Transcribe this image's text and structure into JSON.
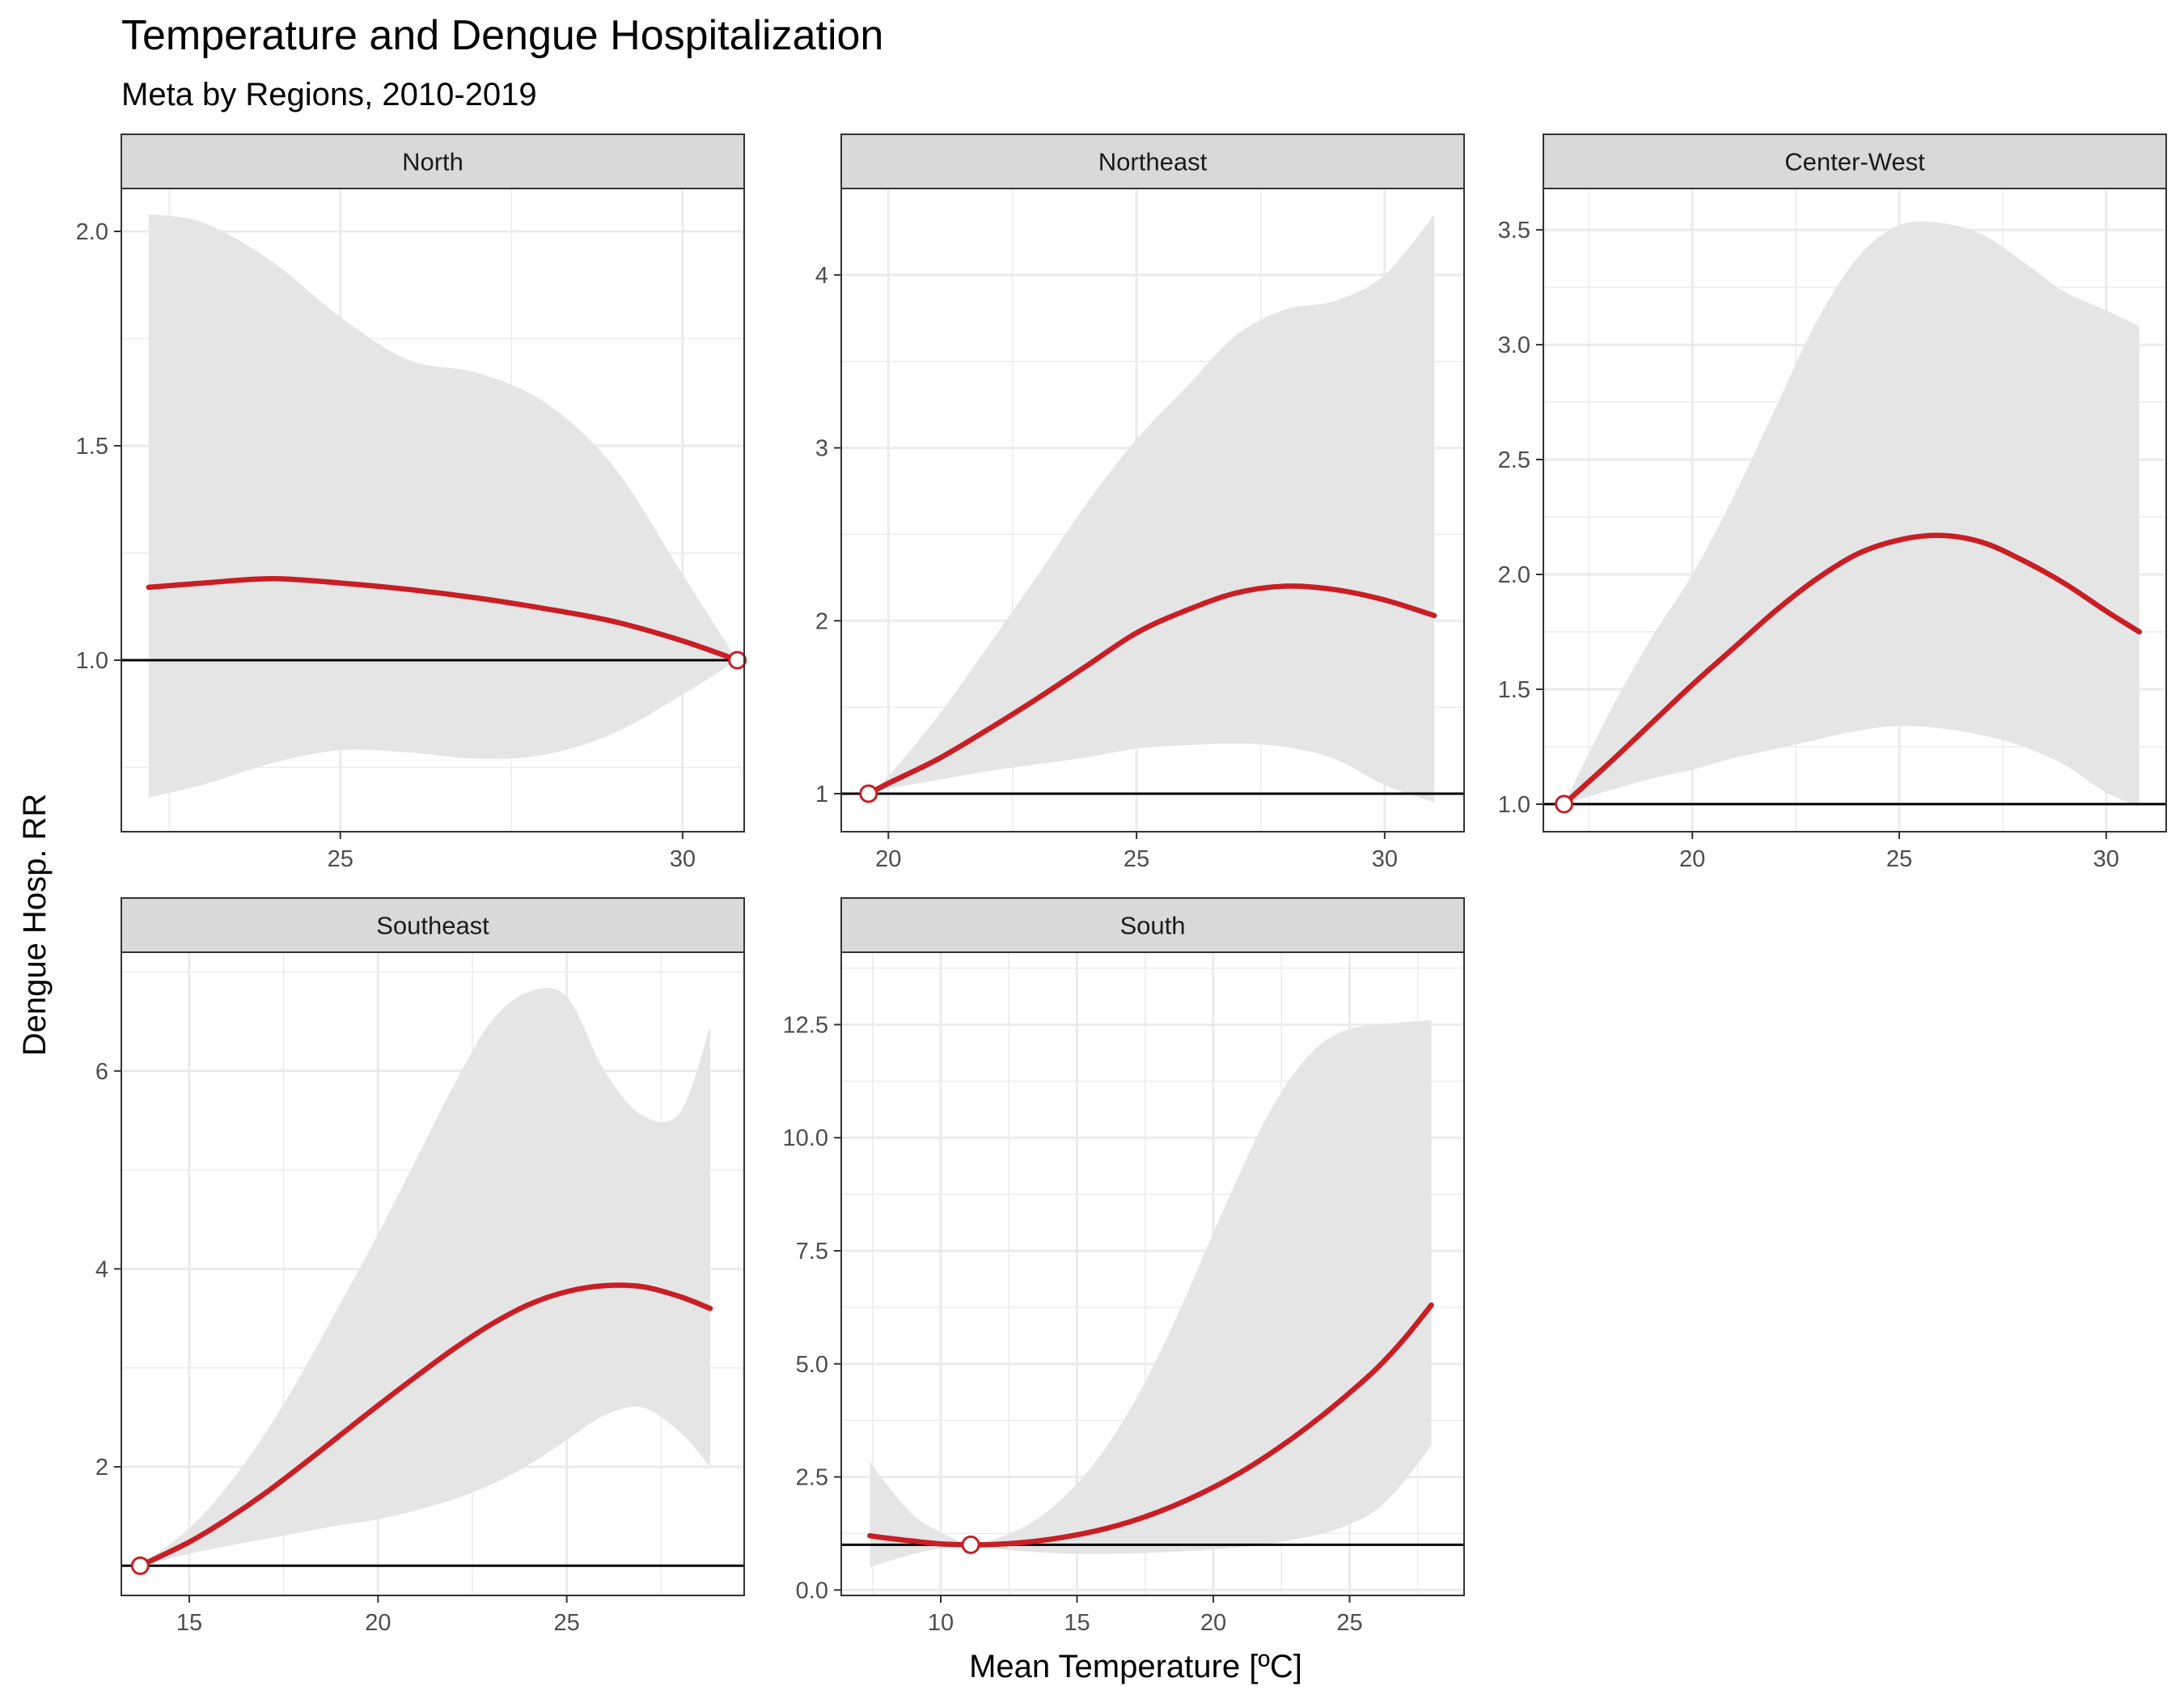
{
  "title": "Temperature and Dengue Hospitalization",
  "subtitle": "Meta by Regions, 2010-2019",
  "colors": {
    "line": "#c81e24",
    "ribbon": "#e5e5e5",
    "grid": "#ebebeb",
    "strip": "#d9d9d9",
    "border": "#333333",
    "reference": "#000000"
  },
  "chart_data": [
    {
      "type": "line",
      "facet": "North",
      "xlabel": "Mean Temperature [ºC]",
      "ylabel": "Dengue Hosp. RR",
      "xlim": [
        21.8,
        30.9
      ],
      "ylim": [
        0.6,
        2.1
      ],
      "xticks": [
        25,
        30
      ],
      "yticks": [
        1.0,
        1.5,
        2.0
      ],
      "ytick_labels": [
        "1.0",
        "1.5",
        "2.0"
      ],
      "reference_y": 1.0,
      "reference_temp": 30.8,
      "x": [
        22.2,
        23,
        24,
        25,
        26,
        27,
        28,
        29,
        30,
        30.8
      ],
      "rr": [
        1.17,
        1.18,
        1.19,
        1.18,
        1.165,
        1.145,
        1.12,
        1.09,
        1.045,
        1.0
      ],
      "lower": [
        0.68,
        0.71,
        0.76,
        0.79,
        0.785,
        0.77,
        0.78,
        0.83,
        0.92,
        1.0
      ],
      "upper": [
        2.04,
        2.02,
        1.93,
        1.8,
        1.7,
        1.67,
        1.6,
        1.45,
        1.2,
        1.0
      ]
    },
    {
      "type": "line",
      "facet": "Northeast",
      "xlabel": "Mean Temperature [ºC]",
      "ylabel": "Dengue Hosp. RR",
      "xlim": [
        19.05,
        31.6
      ],
      "ylim": [
        0.78,
        4.5
      ],
      "xticks": [
        20,
        25,
        30
      ],
      "yticks": [
        1,
        2,
        3,
        4
      ],
      "ytick_labels": [
        "1",
        "2",
        "3",
        "4"
      ],
      "reference_y": 1.0,
      "reference_temp": 19.6,
      "x": [
        19.6,
        20,
        21,
        22,
        23,
        24,
        25,
        26,
        27,
        28,
        29,
        30,
        31
      ],
      "rr": [
        1.0,
        1.06,
        1.2,
        1.37,
        1.55,
        1.74,
        1.93,
        2.06,
        2.16,
        2.2,
        2.18,
        2.12,
        2.03
      ],
      "lower": [
        1.0,
        1.03,
        1.08,
        1.13,
        1.17,
        1.21,
        1.26,
        1.28,
        1.29,
        1.27,
        1.2,
        1.05,
        0.95
      ],
      "upper": [
        1.0,
        1.1,
        1.45,
        1.85,
        2.26,
        2.68,
        3.05,
        3.35,
        3.65,
        3.8,
        3.85,
        4.0,
        4.35
      ]
    },
    {
      "type": "line",
      "facet": "Center-West",
      "xlabel": "Mean Temperature [ºC]",
      "ylabel": "Dengue Hosp. RR",
      "xlim": [
        16.4,
        31.45
      ],
      "ylim": [
        0.88,
        3.68
      ],
      "xticks": [
        20,
        25,
        30
      ],
      "yticks": [
        1.0,
        1.5,
        2.0,
        2.5,
        3.0,
        3.5
      ],
      "ytick_labels": [
        "1.0",
        "1.5",
        "2.0",
        "2.5",
        "3.0",
        "3.5"
      ],
      "reference_y": 1.0,
      "reference_temp": 16.9,
      "x": [
        16.9,
        18,
        19,
        20,
        21,
        22,
        23,
        24,
        25,
        26,
        27,
        28,
        29,
        30,
        30.8
      ],
      "rr": [
        1.0,
        1.18,
        1.35,
        1.52,
        1.68,
        1.84,
        1.98,
        2.09,
        2.15,
        2.17,
        2.14,
        2.06,
        1.96,
        1.84,
        1.75
      ],
      "lower": [
        1.0,
        1.06,
        1.11,
        1.15,
        1.2,
        1.24,
        1.28,
        1.32,
        1.34,
        1.33,
        1.3,
        1.25,
        1.17,
        1.05,
        0.99
      ],
      "upper": [
        1.0,
        1.4,
        1.72,
        2.0,
        2.34,
        2.72,
        3.1,
        3.38,
        3.52,
        3.53,
        3.48,
        3.36,
        3.23,
        3.15,
        3.08
      ]
    },
    {
      "type": "line",
      "facet": "Southeast",
      "xlabel": "Mean Temperature [ºC]",
      "ylabel": "Dengue Hosp. RR",
      "xlim": [
        13.2,
        29.7
      ],
      "ylim": [
        0.7,
        7.2
      ],
      "xticks": [
        15,
        20,
        25
      ],
      "yticks": [
        2,
        4,
        6
      ],
      "ytick_labels": [
        "2",
        "4",
        "6"
      ],
      "reference_y": 1.0,
      "reference_temp": 13.7,
      "x": [
        13.7,
        15,
        16,
        17,
        18,
        19,
        20,
        21,
        22,
        23,
        24,
        25,
        26,
        27,
        28,
        28.8
      ],
      "rr": [
        1.0,
        1.24,
        1.47,
        1.73,
        2.02,
        2.32,
        2.62,
        2.91,
        3.19,
        3.44,
        3.64,
        3.77,
        3.83,
        3.82,
        3.72,
        3.6
      ],
      "lower": [
        1.0,
        1.12,
        1.2,
        1.27,
        1.34,
        1.41,
        1.47,
        1.56,
        1.67,
        1.82,
        2.02,
        2.27,
        2.52,
        2.6,
        2.35,
        2.0
      ],
      "upper": [
        1.0,
        1.38,
        1.8,
        2.33,
        2.96,
        3.65,
        4.35,
        5.1,
        5.85,
        6.5,
        6.8,
        6.75,
        6.0,
        5.55,
        5.58,
        6.45
      ]
    },
    {
      "type": "line",
      "facet": "South",
      "xlabel": "Mean Temperature [ºC]",
      "ylabel": "Dengue Hosp. RR",
      "xlim": [
        6.35,
        29.2
      ],
      "ylim": [
        -0.12,
        14.1
      ],
      "xticks": [
        10,
        15,
        20,
        25
      ],
      "yticks": [
        0,
        2.5,
        5,
        7.5,
        10,
        12.5
      ],
      "ytick_labels": [
        "0.0",
        "2.5",
        "5.0",
        "7.5",
        "10.0",
        "12.5"
      ],
      "reference_y": 1.0,
      "reference_temp": 11.1,
      "x": [
        7.4,
        8,
        9,
        10,
        11.1,
        12,
        13,
        14,
        15,
        16,
        17,
        18,
        19,
        20,
        21,
        22,
        23,
        24,
        25,
        26,
        27,
        28
      ],
      "rr": [
        1.2,
        1.15,
        1.08,
        1.02,
        1.0,
        1.01,
        1.05,
        1.12,
        1.22,
        1.35,
        1.52,
        1.73,
        1.98,
        2.27,
        2.6,
        2.98,
        3.4,
        3.86,
        4.36,
        4.9,
        5.55,
        6.3
      ],
      "lower": [
        0.5,
        0.62,
        0.8,
        0.92,
        1.0,
        0.92,
        0.86,
        0.82,
        0.8,
        0.8,
        0.81,
        0.83,
        0.86,
        0.9,
        0.95,
        1.02,
        1.12,
        1.25,
        1.45,
        1.78,
        2.4,
        3.2
      ],
      "upper": [
        2.85,
        2.35,
        1.65,
        1.28,
        1.0,
        1.13,
        1.38,
        1.78,
        2.35,
        3.1,
        4.05,
        5.2,
        6.5,
        7.9,
        9.25,
        10.5,
        11.45,
        12.1,
        12.4,
        12.5,
        12.55,
        12.6
      ]
    }
  ]
}
